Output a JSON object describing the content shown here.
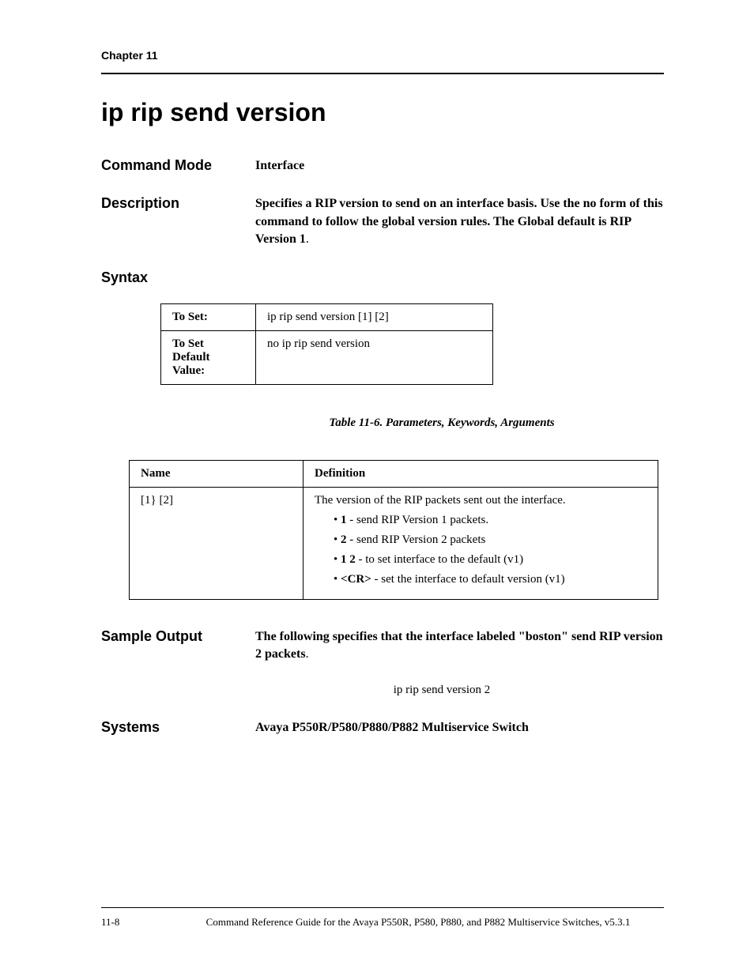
{
  "chapter_header": "Chapter 11",
  "page_title": "ip rip send version",
  "command_mode": {
    "label": "Command Mode",
    "value": "Interface"
  },
  "description": {
    "label": "Description",
    "line1": "Specifies a RIP version to send on an interface basis. Use the no form of this command to follow the global version rules. The Global default is RIP Version 1",
    "period": "."
  },
  "syntax": {
    "label": "Syntax",
    "rows": [
      {
        "label": "To Set:",
        "cmd": "ip rip send version [1] [2]"
      },
      {
        "label": "To Set Default Value:",
        "cmd": "no ip rip send version"
      }
    ]
  },
  "table_caption": "Table 11-6.  Parameters, Keywords, Arguments",
  "param_table": {
    "header_name": "Name",
    "header_def": "Definition",
    "name_value": "[1} [2]",
    "def_first": "The version of the RIP packets sent out the interface.",
    "bullets": [
      {
        "bold": "1",
        "text": " - send RIP Version 1 packets."
      },
      {
        "bold": "2",
        "text": " - send RIP Version 2 packets"
      },
      {
        "bold": "1 2",
        "text": " - to set interface to the default (v1)"
      },
      {
        "bold": "<CR>",
        "text": " - set the interface to default version (v1)"
      }
    ]
  },
  "sample_output": {
    "label": "Sample Output",
    "text": "The following specifies that the interface labeled \"boston\" send RIP version 2 packets",
    "period": ".",
    "cmd": "ip rip send version 2"
  },
  "systems": {
    "label": "Systems",
    "value": "Avaya P550R/P580/P880/P882 Multiservice Switch"
  },
  "footer": {
    "pagenum": "11-8",
    "text": "Command Reference Guide for the Avaya P550R, P580, P880, and P882 Multiservice Switches, v5.3.1"
  }
}
